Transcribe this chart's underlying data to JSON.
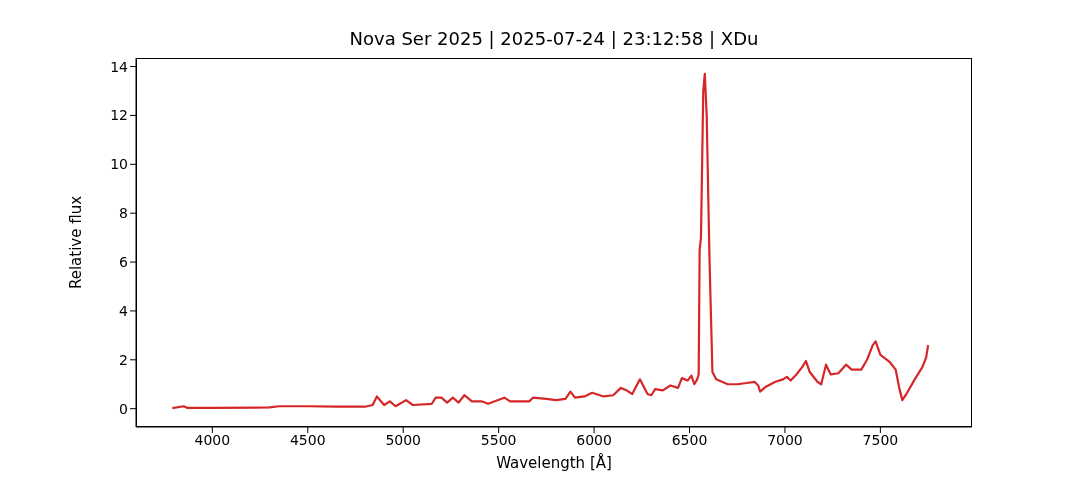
{
  "chart_data": {
    "type": "line",
    "title": "Nova Ser 2025 | 2025-07-24 | 23:12:58 | XDu",
    "xlabel": "Wavelength [Å]",
    "ylabel": "Relative flux",
    "xlim": [
      3600,
      7980
    ],
    "ylim": [
      -0.75,
      14.35
    ],
    "xticks": [
      4000,
      4500,
      5000,
      5500,
      6000,
      6500,
      7000,
      7500
    ],
    "yticks": [
      0,
      2,
      4,
      6,
      8,
      10,
      12,
      14
    ],
    "marker": "none",
    "line_style": "solid",
    "series": [
      {
        "color": "#d62728",
        "x": [
          3790,
          3850,
          3870,
          4000,
          4300,
          4350,
          4500,
          4650,
          4800,
          4840,
          4862,
          4900,
          4930,
          4960,
          5015,
          5050,
          5150,
          5170,
          5200,
          5230,
          5260,
          5290,
          5320,
          5360,
          5410,
          5445,
          5480,
          5530,
          5560,
          5600,
          5660,
          5680,
          5750,
          5800,
          5850,
          5876,
          5900,
          5950,
          5990,
          6050,
          6100,
          6140,
          6170,
          6200,
          6240,
          6280,
          6300,
          6320,
          6360,
          6400,
          6440,
          6460,
          6490,
          6510,
          6525,
          6540,
          6548,
          6553,
          6560,
          6572,
          6580,
          6590,
          6605,
          6620,
          6640,
          6700,
          6750,
          6800,
          6840,
          6860,
          6870,
          6900,
          6950,
          6990,
          7010,
          7030,
          7060,
          7090,
          7110,
          7130,
          7170,
          7190,
          7215,
          7240,
          7280,
          7320,
          7350,
          7400,
          7430,
          7460,
          7475,
          7500,
          7550,
          7580,
          7600,
          7615,
          7640,
          7680,
          7720,
          7740,
          7750
        ],
        "values": [
          0.02,
          0.1,
          0.03,
          0.03,
          0.05,
          0.1,
          0.1,
          0.08,
          0.08,
          0.15,
          0.5,
          0.15,
          0.3,
          0.1,
          0.35,
          0.15,
          0.2,
          0.45,
          0.45,
          0.25,
          0.45,
          0.25,
          0.55,
          0.3,
          0.3,
          0.2,
          0.3,
          0.45,
          0.3,
          0.3,
          0.3,
          0.45,
          0.4,
          0.35,
          0.4,
          0.7,
          0.45,
          0.5,
          0.65,
          0.5,
          0.55,
          0.85,
          0.75,
          0.6,
          1.2,
          0.6,
          0.55,
          0.8,
          0.75,
          0.95,
          0.85,
          1.25,
          1.15,
          1.35,
          1.0,
          1.2,
          1.4,
          6.5,
          7.0,
          13.0,
          13.7,
          12,
          6,
          1.5,
          1.2,
          1.0,
          1.0,
          1.05,
          1.1,
          0.95,
          0.7,
          0.9,
          1.1,
          1.2,
          1.3,
          1.15,
          1.4,
          1.7,
          1.95,
          1.5,
          1.1,
          1.0,
          1.8,
          1.4,
          1.45,
          1.8,
          1.6,
          1.6,
          2.0,
          2.6,
          2.75,
          2.2,
          1.9,
          1.6,
          0.8,
          0.35,
          0.65,
          1.2,
          1.7,
          2.1,
          2.6
        ]
      }
    ]
  }
}
